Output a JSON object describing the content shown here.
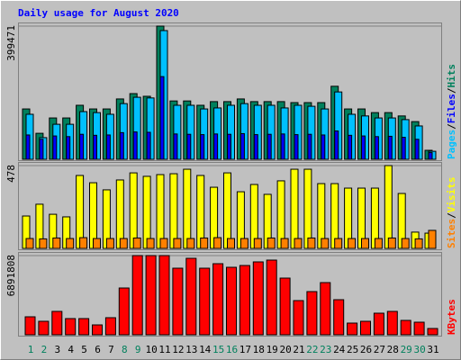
{
  "chart_data": [
    {
      "type": "bar",
      "title": "Daily usage for August 2020",
      "ylim": [
        0,
        399471
      ],
      "yticks": [
        399471
      ],
      "legend_separator": "/",
      "series": [
        {
          "name": "Pages",
          "color": "#00c0ff",
          "values": [
            135000,
            65000,
            105000,
            105000,
            143000,
            140000,
            135000,
            167000,
            186000,
            184000,
            386000,
            162000,
            162000,
            151000,
            154000,
            162000,
            167000,
            162000,
            162000,
            154000,
            162000,
            159000,
            151000,
            202000,
            135000,
            130000,
            124000,
            124000,
            119000,
            100000,
            24000
          ]
        },
        {
          "name": "Files",
          "color": "#0000ff",
          "values": [
            73000,
            60000,
            70000,
            68000,
            75000,
            72000,
            73000,
            80000,
            82000,
            81000,
            248000,
            76000,
            75000,
            74000,
            76000,
            75000,
            77000,
            74000,
            75000,
            76000,
            74000,
            75000,
            73000,
            85000,
            72000,
            70000,
            68000,
            69000,
            66000,
            60000,
            20000
          ]
        },
        {
          "name": "Hits",
          "color": "#00805c",
          "values": [
            151000,
            78000,
            124000,
            124000,
            162000,
            151000,
            151000,
            181000,
            197000,
            189000,
            399471,
            175000,
            175000,
            162000,
            173000,
            173000,
            181000,
            173000,
            173000,
            173000,
            170000,
            170000,
            170000,
            219000,
            151000,
            151000,
            140000,
            140000,
            130000,
            113000,
            27000
          ]
        }
      ]
    },
    {
      "type": "bar",
      "ylim": [
        0,
        478
      ],
      "yticks": [
        478
      ],
      "legend_separator": "/",
      "series": [
        {
          "name": "Sites",
          "color": "#ff8000",
          "values": [
            57,
            55,
            60,
            57,
            62,
            57,
            57,
            57,
            60,
            57,
            57,
            57,
            57,
            60,
            62,
            57,
            57,
            57,
            60,
            57,
            57,
            60,
            57,
            57,
            57,
            57,
            57,
            60,
            57,
            55,
            104
          ]
        },
        {
          "name": "Visits",
          "color": "#ffff00",
          "values": [
            187,
            255,
            197,
            182,
            421,
            379,
            338,
            395,
            436,
            416,
            426,
            431,
            457,
            421,
            353,
            436,
            327,
            369,
            312,
            390,
            457,
            457,
            374,
            374,
            348,
            348,
            348,
            478,
            317,
            94,
            88
          ]
        }
      ]
    },
    {
      "type": "bar",
      "ylim": [
        0,
        6891808
      ],
      "yticks": [
        6891808
      ],
      "categories": [
        "1",
        "2",
        "3",
        "4",
        "5",
        "6",
        "7",
        "8",
        "9",
        "10",
        "11",
        "12",
        "13",
        "14",
        "15",
        "16",
        "17",
        "18",
        "19",
        "20",
        "21",
        "22",
        "23",
        "24",
        "25",
        "26",
        "27",
        "28",
        "29",
        "30",
        "31"
      ],
      "category_colors": [
        "#00805c",
        "#00805c",
        "#000000",
        "#000000",
        "#000000",
        "#000000",
        "#000000",
        "#00805c",
        "#00805c",
        "#000000",
        "#000000",
        "#000000",
        "#000000",
        "#000000",
        "#00805c",
        "#00805c",
        "#000000",
        "#000000",
        "#000000",
        "#000000",
        "#000000",
        "#00805c",
        "#00805c",
        "#000000",
        "#000000",
        "#000000",
        "#000000",
        "#000000",
        "#00805c",
        "#00805c",
        "#000000"
      ],
      "series": [
        {
          "name": "KBytes",
          "color": "#ff0000",
          "values": [
            1566000,
            1175000,
            2036000,
            1410000,
            1410000,
            861000,
            1488000,
            4072000,
            6891808,
            6891808,
            6891808,
            5795000,
            6657000,
            5795000,
            6187000,
            5874000,
            6030000,
            6344000,
            6500000,
            4934000,
            2976000,
            3759000,
            4542000,
            3054000,
            1018000,
            1175000,
            1880000,
            2036000,
            1253000,
            1096000,
            548000
          ]
        }
      ]
    }
  ]
}
